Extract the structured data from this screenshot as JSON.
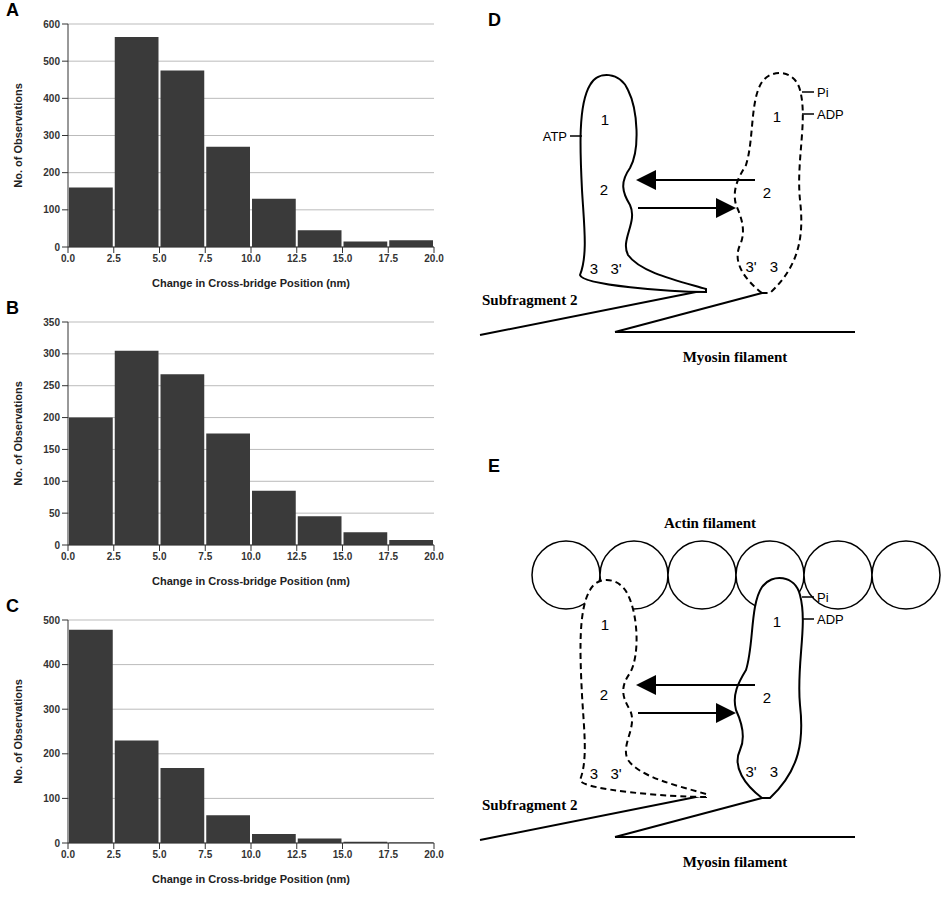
{
  "chart_data": [
    {
      "panel": "A",
      "type": "histogram",
      "x_label": "Change in Cross-bridge Position (nm)",
      "y_label": "No. of Observations",
      "bins": [
        0,
        2.5,
        5,
        7.5,
        10,
        12.5,
        15,
        17.5,
        20
      ],
      "values": [
        160,
        565,
        475,
        270,
        130,
        45,
        15,
        18
      ],
      "color": "#3a3a3a",
      "xlim": [
        0,
        20
      ],
      "xticks": [
        {
          "value": 0,
          "label": "0.0"
        },
        2.5,
        {
          "value": 5,
          "label": "5.0"
        },
        7.5,
        {
          "value": 10,
          "label": "10.0"
        },
        12.5,
        {
          "value": 15,
          "label": "15.0"
        },
        17.5,
        {
          "value": 20,
          "label": "20.0"
        }
      ],
      "ylim": [
        0,
        600
      ],
      "yticks": [
        0,
        100,
        200,
        300,
        400,
        500,
        600
      ],
      "grid": true
    },
    {
      "panel": "B",
      "type": "histogram",
      "x_label": "Change in Cross-bridge Position (nm)",
      "y_label": "No. of Observations",
      "bins": [
        0,
        2.5,
        5,
        7.5,
        10,
        12.5,
        15,
        17.5,
        20
      ],
      "values": [
        200,
        305,
        268,
        175,
        85,
        45,
        20,
        8
      ],
      "color": "#3a3a3a",
      "xlim": [
        0,
        20
      ],
      "xticks": [
        {
          "value": 0,
          "label": "0.0"
        },
        2.5,
        {
          "value": 5,
          "label": "5.0"
        },
        7.5,
        {
          "value": 10,
          "label": "10.0"
        },
        12.5,
        {
          "value": 15,
          "label": "15.0"
        },
        17.5,
        {
          "value": 20,
          "label": "20.0"
        }
      ],
      "ylim": [
        0,
        350
      ],
      "yticks": [
        0,
        50,
        100,
        150,
        200,
        250,
        300,
        350
      ],
      "grid": true
    },
    {
      "panel": "C",
      "type": "histogram",
      "x_label": "Change in Cross-bridge Position (nm)",
      "y_label": "No. of Observations",
      "bins": [
        0,
        2.5,
        5,
        7.5,
        10,
        12.5,
        15,
        17.5,
        20
      ],
      "values": [
        478,
        230,
        168,
        62,
        20,
        10,
        3,
        1
      ],
      "color": "#3a3a3a",
      "xlim": [
        0,
        20
      ],
      "xticks": [
        {
          "value": 0,
          "label": "0.0"
        },
        2.5,
        {
          "value": 5,
          "label": "5.0"
        },
        7.5,
        {
          "value": 10,
          "label": "10.0"
        },
        12.5,
        {
          "value": 15,
          "label": "15.0"
        },
        17.5,
        {
          "value": 20,
          "label": "20.0"
        }
      ],
      "ylim": [
        0,
        500
      ],
      "yticks": [
        0,
        100,
        200,
        300,
        400,
        500
      ],
      "grid": true
    }
  ],
  "diagrams": [
    {
      "panel": "D",
      "domain_labels": [
        "1",
        "2",
        "3",
        "3'"
      ],
      "solid_head_label": "ATP",
      "dashed_head_labels": [
        "Pi",
        "ADP"
      ],
      "subfragment_label": "Subfragment 2",
      "filament_label": "Myosin filament"
    },
    {
      "panel": "E",
      "actin_label": "Actin filament",
      "domain_labels": [
        "1",
        "2",
        "3",
        "3'"
      ],
      "solid_head_labels": [
        "Pi",
        "ADP"
      ],
      "subfragment_label": "Subfragment 2",
      "filament_label": "Myosin filament"
    }
  ]
}
